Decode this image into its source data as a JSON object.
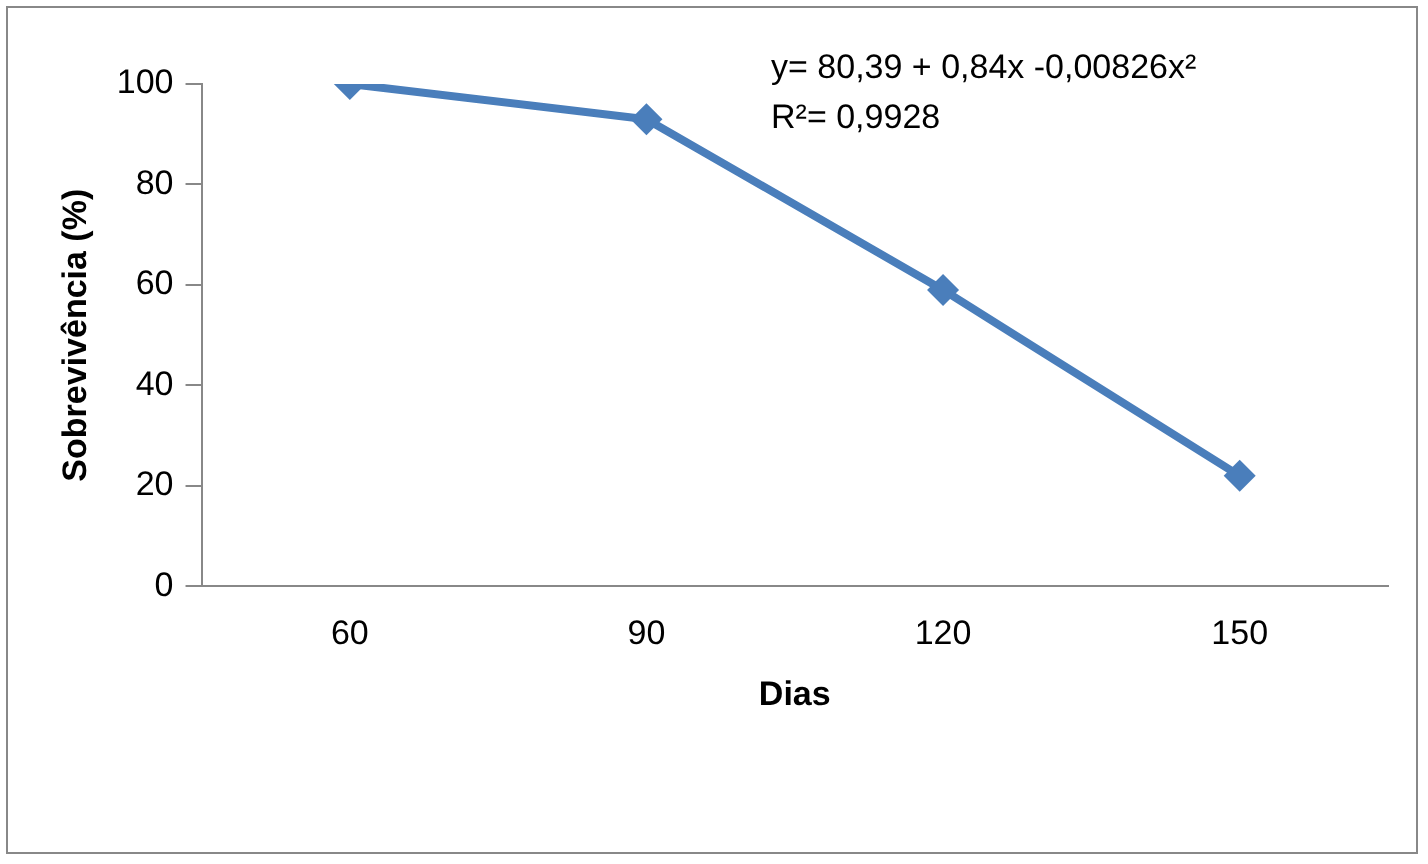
{
  "chart_data": {
    "type": "line",
    "xlabel": "Dias",
    "ylabel": "Sobrevivência (%)",
    "categories": [
      "60",
      "90",
      "120",
      "150"
    ],
    "series": [
      {
        "color": "#4a7ebb",
        "values": [
          100,
          93,
          59,
          22
        ]
      }
    ],
    "ylim": [
      0,
      100
    ],
    "yticks": [
      0,
      20,
      40,
      60,
      80,
      100
    ],
    "marker": "diamond",
    "line_style": "solid",
    "grid": false,
    "legend": false,
    "annotations": [
      "y= 80,39 + 0,84x -0,00826x²",
      "R²= 0,9928"
    ]
  }
}
